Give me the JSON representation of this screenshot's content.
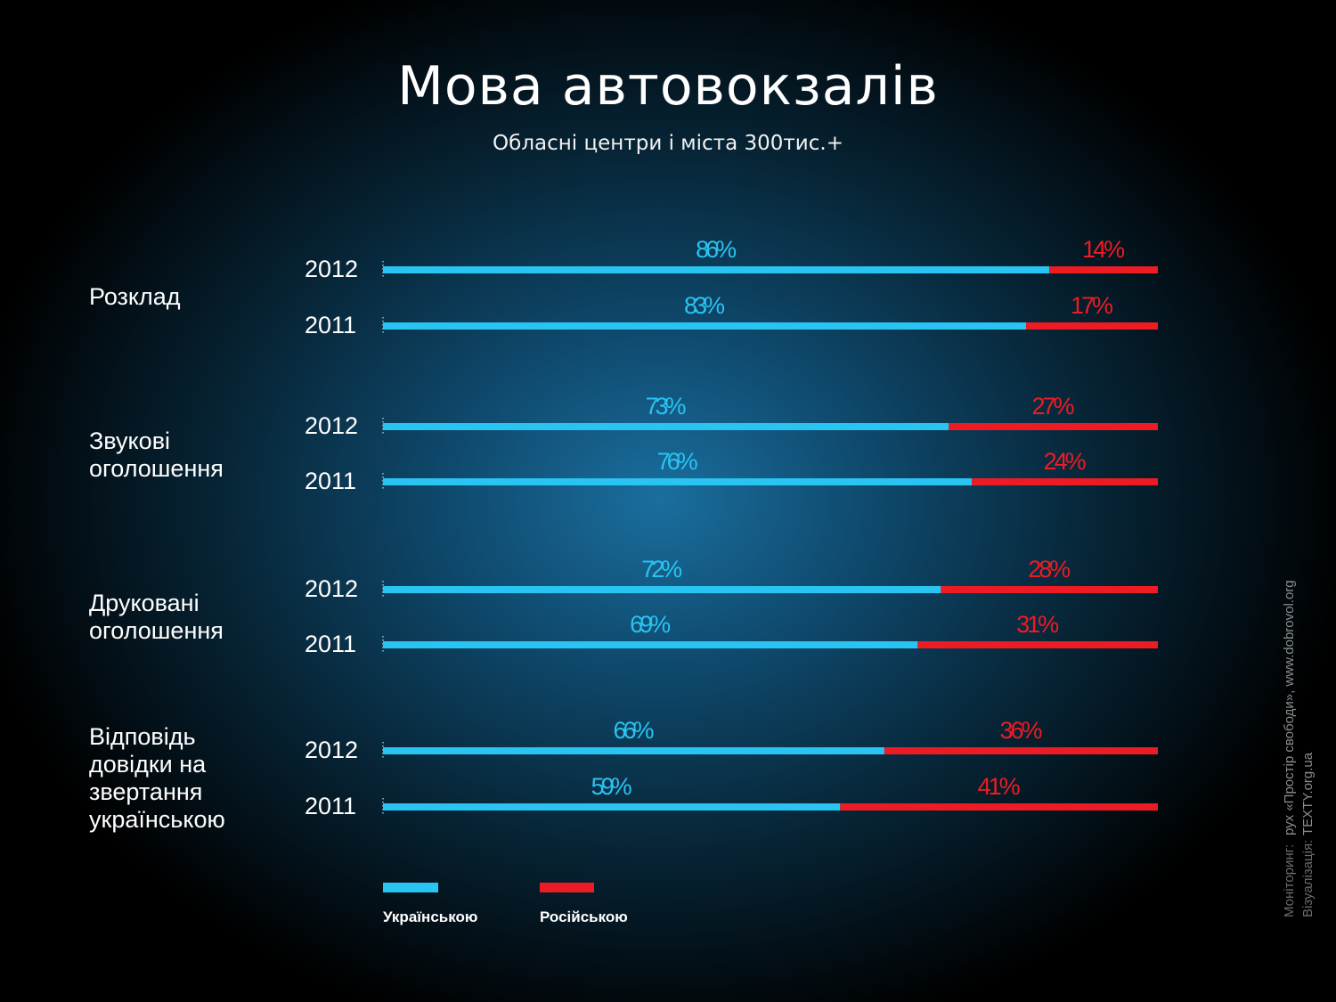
{
  "title": "Мова автовокзалів",
  "subtitle": "Обласні центри і міста 300тис.+",
  "colors": {
    "ukrainian": "#29c4f2",
    "russian": "#ed1c24"
  },
  "chart_data": {
    "type": "bar",
    "orientation": "horizontal",
    "stacked": true,
    "unit": "%",
    "categories": [
      {
        "label": "Розклад",
        "rows": [
          {
            "year": "2012",
            "ukrainian": 86,
            "russian": 14
          },
          {
            "year": "2011",
            "ukrainian": 83,
            "russian": 17
          }
        ]
      },
      {
        "label": "Звукові\nоголошення",
        "rows": [
          {
            "year": "2012",
            "ukrainian": 73,
            "russian": 27
          },
          {
            "year": "2011",
            "ukrainian": 76,
            "russian": 24
          }
        ]
      },
      {
        "label": "Друковані\nоголошення",
        "rows": [
          {
            "year": "2012",
            "ukrainian": 72,
            "russian": 28
          },
          {
            "year": "2011",
            "ukrainian": 69,
            "russian": 31
          }
        ]
      },
      {
        "label": "Відповідь\nдовідки на\nзвертання\nукраїнською",
        "rows": [
          {
            "year": "2012",
            "ukrainian": 66,
            "russian": 36
          },
          {
            "year": "2011",
            "ukrainian": 59,
            "russian": 41
          }
        ]
      }
    ],
    "series": [
      {
        "key": "ukrainian",
        "name": "Українською"
      },
      {
        "key": "russian",
        "name": "Російською"
      }
    ],
    "legend_position": "bottom-left"
  },
  "credits": {
    "monitoring_label": "Моніторинг:",
    "monitoring_value": "рух «Простір свободи», www.dobrovol.org",
    "visualization_label": "Візуалізація:",
    "visualization_value": "TEXTY.org.ua"
  }
}
